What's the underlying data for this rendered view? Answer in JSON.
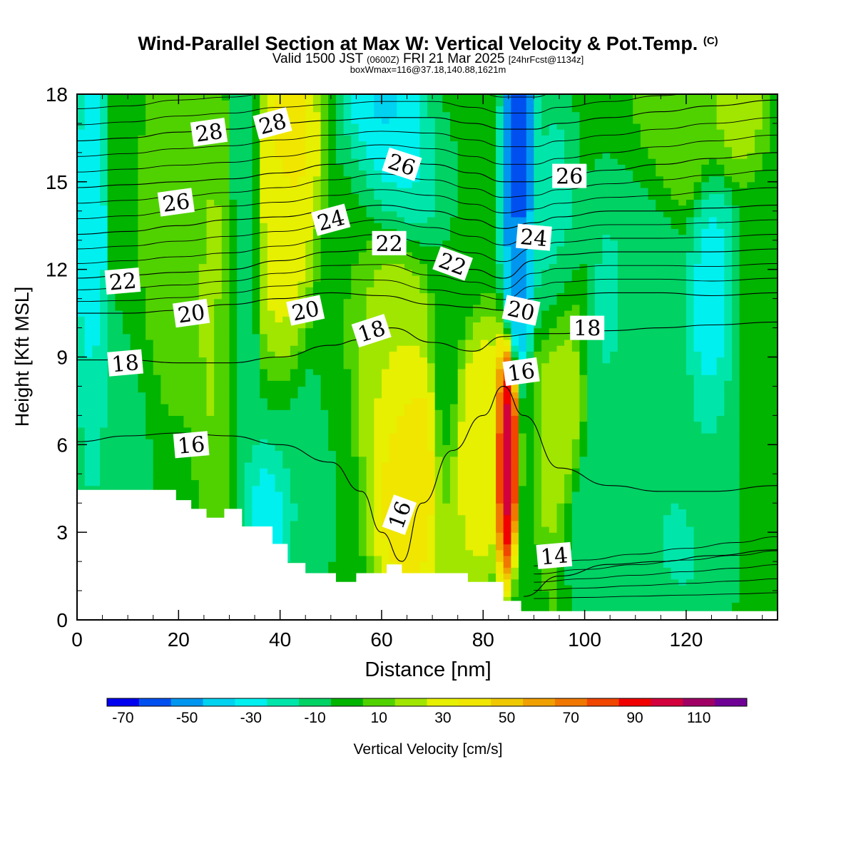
{
  "title": {
    "main": "Wind-Parallel Section at Max W: Vertical Velocity & Pot.Temp.",
    "copyright": "(C)",
    "valid_prefix": "Valid 1500 JST",
    "valid_utc": "(0600Z)",
    "valid_date": "FRI 21 Mar 2025",
    "forecast": "[24hrFcst@1134z]",
    "box_info": "boxWmax=116@37.18,140.88,1621m"
  },
  "colorbar": {
    "label": "Vertical Velocity [cm/s]",
    "tick_labels": [
      "-70",
      "-50",
      "-30",
      "-10",
      "10",
      "30",
      "50",
      "70",
      "90",
      "110"
    ],
    "levels": [
      -70,
      -60,
      -50,
      -40,
      -30,
      -20,
      -10,
      0,
      10,
      20,
      30,
      40,
      50,
      60,
      70,
      80,
      90,
      100,
      110,
      120
    ],
    "colors": [
      "#0000f0",
      "#0050f0",
      "#0096f0",
      "#00d2f0",
      "#00f0f0",
      "#00e6aa",
      "#00d264",
      "#00b400",
      "#50d200",
      "#a0e600",
      "#e6f000",
      "#f0e600",
      "#f0c800",
      "#f0a000",
      "#f07800",
      "#f04600",
      "#f00000",
      "#d2003c",
      "#a00064",
      "#6e0096"
    ]
  },
  "chart_data": {
    "type": "contourf",
    "xlabel": "Distance [nm]",
    "ylabel": "Height [Kft MSL]",
    "xlim": [
      0,
      138
    ],
    "ylim": [
      0,
      18
    ],
    "x_ticks": [
      0,
      20,
      40,
      60,
      80,
      100,
      120
    ],
    "y_ticks": [
      0,
      3,
      6,
      9,
      12,
      15,
      18
    ],
    "fill_variable": "Vertical Velocity",
    "fill_unit": "cm/s",
    "max_w": 116,
    "updraft_core": {
      "x": 84.5,
      "y": 5.6,
      "w": 116
    },
    "terrain_profile": {
      "x": [
        0,
        19.5,
        19.5,
        22.5,
        22.5,
        25.5,
        25.5,
        29,
        29,
        32.5,
        32.5,
        38.5,
        38.5,
        41.5,
        41.5,
        45,
        45,
        48,
        48,
        51,
        51,
        55,
        55,
        61,
        61,
        64,
        64,
        77,
        77,
        84,
        84,
        87.5,
        87.5,
        90.5,
        90.5,
        138
      ],
      "y": [
        4.45,
        4.45,
        4.1,
        4.1,
        3.8,
        3.8,
        3.5,
        3.5,
        3.8,
        3.8,
        3.2,
        3.2,
        2.6,
        2.6,
        1.95,
        1.95,
        1.6,
        1.6,
        1.6,
        1.6,
        1.3,
        1.3,
        1.6,
        1.6,
        1.9,
        1.9,
        1.6,
        1.6,
        1.3,
        1.3,
        0.65,
        0.65,
        0.3,
        0.3,
        0.3,
        0.3
      ]
    },
    "wind_centers": [
      {
        "x": 3,
        "y": 13,
        "w": -30,
        "rx": 2,
        "ry": 5
      },
      {
        "x": 6,
        "y": 7,
        "w": -10,
        "rx": 5,
        "ry": 3
      },
      {
        "x": 12,
        "y": 15,
        "w": 10,
        "rx": 4,
        "ry": 5
      },
      {
        "x": 20,
        "y": 13.5,
        "w": 20,
        "rx": 5,
        "ry": 4
      },
      {
        "x": 27,
        "y": 10.5,
        "w": 22,
        "rx": 3,
        "ry": 5
      },
      {
        "x": 30,
        "y": 8.5,
        "w": 10,
        "rx": 2,
        "ry": 3
      },
      {
        "x": 33,
        "y": 12,
        "w": -10,
        "rx": 2,
        "ry": 7
      },
      {
        "x": 42,
        "y": 16,
        "w": 45,
        "rx": 4,
        "ry": 3
      },
      {
        "x": 41,
        "y": 12,
        "w": 35,
        "rx": 4,
        "ry": 4
      },
      {
        "x": 44,
        "y": 6,
        "w": -10,
        "rx": 7,
        "ry": 3
      },
      {
        "x": 38,
        "y": 4,
        "w": -30,
        "rx": 3,
        "ry": 1.5
      },
      {
        "x": 50,
        "y": 8,
        "w": 5,
        "rx": 4,
        "ry": 4
      },
      {
        "x": 55,
        "y": 13,
        "w": 5,
        "rx": 4,
        "ry": 3
      },
      {
        "x": 60,
        "y": 17,
        "w": -35,
        "rx": 5,
        "ry": 2
      },
      {
        "x": 62,
        "y": 15,
        "w": -25,
        "rx": 6,
        "ry": 2
      },
      {
        "x": 60,
        "y": 10,
        "w": 30,
        "rx": 6,
        "ry": 4
      },
      {
        "x": 65,
        "y": 5,
        "w": 50,
        "rx": 5,
        "ry": 3
      },
      {
        "x": 75,
        "y": 3,
        "w": 30,
        "rx": 3,
        "ry": 3
      },
      {
        "x": 73,
        "y": 9,
        "w": 0,
        "rx": 2,
        "ry": 5
      },
      {
        "x": 76,
        "y": 15,
        "w": 0,
        "rx": 3,
        "ry": 4
      },
      {
        "x": 79,
        "y": 6,
        "w": 40,
        "rx": 4,
        "ry": 3
      },
      {
        "x": 84.5,
        "y": 5.6,
        "w": 116,
        "rx": 1.5,
        "ry": 2.6
      },
      {
        "x": 87,
        "y": 16,
        "w": -60,
        "rx": 2,
        "ry": 4
      },
      {
        "x": 87,
        "y": 12,
        "w": -40,
        "rx": 2,
        "ry": 2
      },
      {
        "x": 95,
        "y": 7,
        "w": 30,
        "rx": 3,
        "ry": 4
      },
      {
        "x": 94,
        "y": 13,
        "w": -15,
        "rx": 3,
        "ry": 3
      },
      {
        "x": 100,
        "y": 3,
        "w": -10,
        "rx": 4,
        "ry": 2
      },
      {
        "x": 105,
        "y": 11,
        "w": -20,
        "rx": 2,
        "ry": 2
      },
      {
        "x": 110,
        "y": 10,
        "w": -5,
        "rx": 6,
        "ry": 6
      },
      {
        "x": 118,
        "y": 17,
        "w": 20,
        "rx": 8,
        "ry": 2
      },
      {
        "x": 130,
        "y": 17.5,
        "w": 25,
        "rx": 4,
        "ry": 1.5
      },
      {
        "x": 125,
        "y": 10,
        "w": -25,
        "rx": 3,
        "ry": 4
      },
      {
        "x": 135,
        "y": 8,
        "w": 10,
        "rx": 3,
        "ry": 4
      },
      {
        "x": 130,
        "y": 5,
        "w": 0,
        "rx": 8,
        "ry": 3
      },
      {
        "x": 120,
        "y": 3,
        "w": -12,
        "rx": 6,
        "ry": 2
      }
    ],
    "isentropes": [
      {
        "value": 14,
        "x": [
          88,
          95,
          105,
          115,
          125,
          138
        ],
        "y": [
          0.8,
          1.5,
          1.9,
          2.0,
          2.2,
          2.4
        ]
      },
      {
        "value": 16,
        "x": [
          0,
          10,
          20,
          30,
          40,
          50,
          56,
          60,
          64,
          68,
          74,
          80,
          84,
          88,
          95,
          105,
          115,
          125,
          138
        ],
        "y": [
          6.1,
          6.3,
          6.4,
          6.3,
          6.0,
          5.4,
          4.4,
          3.0,
          2.0,
          4.0,
          5.8,
          7.0,
          8.0,
          7.0,
          5.2,
          4.6,
          4.4,
          4.4,
          4.6
        ]
      },
      {
        "value": 18,
        "x": [
          0,
          10,
          20,
          30,
          40,
          50,
          56,
          62,
          70,
          78,
          84,
          90,
          95,
          105,
          115,
          125,
          138
        ],
        "y": [
          8.9,
          8.9,
          8.8,
          8.8,
          9.0,
          9.4,
          9.6,
          10.0,
          9.5,
          9.2,
          9.7,
          9.8,
          9.8,
          9.9,
          10.0,
          10.1,
          10.2
        ]
      },
      {
        "value": 20,
        "x": [
          0,
          10,
          20,
          30,
          40,
          50,
          60,
          70,
          78,
          84,
          90,
          95,
          105,
          115,
          125,
          138
        ],
        "y": [
          10.5,
          10.5,
          10.6,
          10.8,
          11.0,
          11.2,
          11.1,
          10.8,
          10.7,
          10.6,
          11.0,
          11.1,
          11.2,
          11.2,
          11.1,
          11.2
        ]
      },
      {
        "value": 22,
        "x": [
          0,
          10,
          20,
          30,
          40,
          50,
          60,
          70,
          78,
          84,
          90,
          95,
          105,
          115,
          125,
          138
        ],
        "y": [
          11.7,
          11.8,
          11.9,
          12.0,
          12.3,
          12.6,
          12.7,
          12.3,
          12.0,
          11.7,
          12.3,
          12.5,
          12.6,
          12.6,
          12.6,
          12.7
        ]
      },
      {
        "value": 24,
        "x": [
          0,
          10,
          20,
          30,
          40,
          50,
          60,
          70,
          78,
          84,
          90,
          95,
          105,
          115,
          125,
          138
        ],
        "y": [
          13.2,
          13.3,
          13.5,
          13.7,
          13.8,
          14.0,
          14.2,
          14.0,
          13.7,
          13.4,
          13.6,
          13.8,
          14.0,
          14.0,
          14.1,
          14.2
        ]
      },
      {
        "value": 26,
        "x": [
          0,
          10,
          20,
          30,
          40,
          50,
          60,
          70,
          78,
          84,
          90,
          95,
          105,
          115,
          125,
          138
        ],
        "y": [
          14.8,
          14.9,
          15.0,
          15.1,
          15.3,
          15.6,
          15.8,
          15.6,
          15.3,
          15.0,
          15.0,
          15.2,
          15.4,
          15.6,
          15.8,
          16.0
        ]
      },
      {
        "value": 28,
        "x": [
          0,
          10,
          20,
          30,
          40,
          50,
          60,
          70,
          78,
          84,
          90,
          95,
          105,
          115,
          125,
          138
        ],
        "y": [
          16.4,
          16.5,
          16.7,
          16.8,
          17.0,
          17.1,
          17.2,
          17.2,
          17.0,
          16.8,
          16.8,
          17.0,
          17.2,
          17.4,
          17.6,
          17.8
        ]
      }
    ],
    "extra_isentropes_count_per_gap": 2,
    "isentrope_labels": [
      {
        "text": "28",
        "x": 26,
        "y": 16.7,
        "rot": -8
      },
      {
        "text": "28",
        "x": 38.5,
        "y": 17.0,
        "rot": -15
      },
      {
        "text": "26",
        "x": 64,
        "y": 15.6,
        "rot": 18
      },
      {
        "text": "26",
        "x": 97,
        "y": 15.2,
        "rot": 0
      },
      {
        "text": "26",
        "x": 19.5,
        "y": 14.3,
        "rot": -8
      },
      {
        "text": "24",
        "x": 50,
        "y": 13.7,
        "rot": -15
      },
      {
        "text": "24",
        "x": 90,
        "y": 13.1,
        "rot": 5
      },
      {
        "text": "22",
        "x": 61.5,
        "y": 12.9,
        "rot": 0
      },
      {
        "text": "22",
        "x": 74,
        "y": 12.2,
        "rot": 20
      },
      {
        "text": "22",
        "x": 9,
        "y": 11.6,
        "rot": -5
      },
      {
        "text": "20",
        "x": 22.5,
        "y": 10.5,
        "rot": -8
      },
      {
        "text": "20",
        "x": 45,
        "y": 10.6,
        "rot": -12
      },
      {
        "text": "20",
        "x": 87.5,
        "y": 10.6,
        "rot": 12
      },
      {
        "text": "18",
        "x": 58,
        "y": 9.9,
        "rot": -18
      },
      {
        "text": "18",
        "x": 100.5,
        "y": 10.0,
        "rot": 0
      },
      {
        "text": "18",
        "x": 9.5,
        "y": 8.8,
        "rot": -5
      },
      {
        "text": "16",
        "x": 87.5,
        "y": 8.5,
        "rot": -8
      },
      {
        "text": "16",
        "x": 22.5,
        "y": 6.0,
        "rot": -5
      },
      {
        "text": "16",
        "x": 63.5,
        "y": 3.6,
        "rot": -70
      },
      {
        "text": "14",
        "x": 94,
        "y": 2.2,
        "rot": -5
      }
    ]
  }
}
